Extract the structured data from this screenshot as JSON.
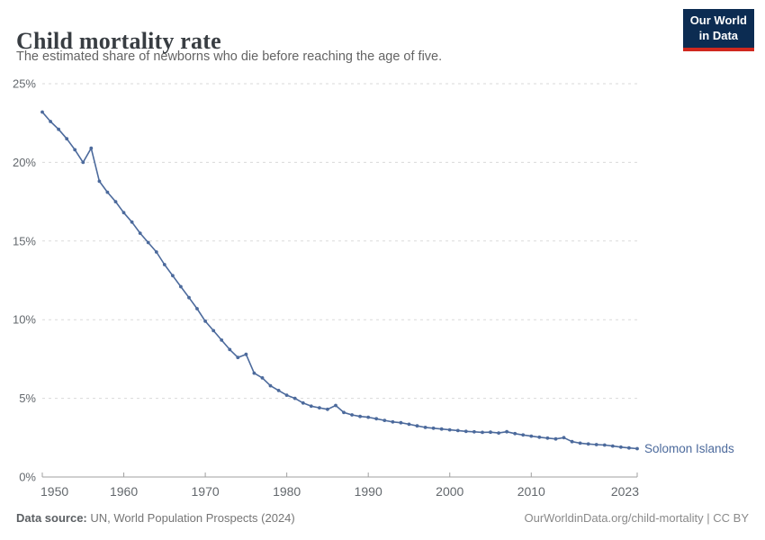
{
  "header": {
    "title": "Child mortality rate",
    "subtitle": "The estimated share of newborns who die before reaching the age of five.",
    "logo": {
      "line1": "Our World",
      "line2": "in Data",
      "bg_color": "#0c2c52",
      "accent_color": "#d0281e"
    }
  },
  "chart_data": {
    "type": "line",
    "title": "Child mortality rate",
    "xlabel": "",
    "ylabel": "",
    "ylim": [
      0,
      25
    ],
    "x_range": [
      1950,
      2023
    ],
    "grid": "dashed-horizontal",
    "legend_position": "end-of-line-label",
    "yticks": [
      {
        "value": 0,
        "label": "0%"
      },
      {
        "value": 5,
        "label": "5%"
      },
      {
        "value": 10,
        "label": "10%"
      },
      {
        "value": 15,
        "label": "15%"
      },
      {
        "value": 20,
        "label": "20%"
      },
      {
        "value": 25,
        "label": "25%"
      }
    ],
    "xticks": [
      {
        "value": 1950,
        "label": "1950"
      },
      {
        "value": 1960,
        "label": "1960"
      },
      {
        "value": 1970,
        "label": "1970"
      },
      {
        "value": 1980,
        "label": "1980"
      },
      {
        "value": 1990,
        "label": "1990"
      },
      {
        "value": 2000,
        "label": "2000"
      },
      {
        "value": 2010,
        "label": "2010"
      },
      {
        "value": 2023,
        "label": "2023"
      }
    ],
    "series": [
      {
        "name": "Solomon Islands",
        "color": "#4c6a9c",
        "years": [
          1950,
          1951,
          1952,
          1953,
          1954,
          1955,
          1956,
          1957,
          1958,
          1959,
          1960,
          1961,
          1962,
          1963,
          1964,
          1965,
          1966,
          1967,
          1968,
          1969,
          1970,
          1971,
          1972,
          1973,
          1974,
          1975,
          1976,
          1977,
          1978,
          1979,
          1980,
          1981,
          1982,
          1983,
          1984,
          1985,
          1986,
          1987,
          1988,
          1989,
          1990,
          1991,
          1992,
          1993,
          1994,
          1995,
          1996,
          1997,
          1998,
          1999,
          2000,
          2001,
          2002,
          2003,
          2004,
          2005,
          2006,
          2007,
          2008,
          2009,
          2010,
          2011,
          2012,
          2013,
          2014,
          2015,
          2016,
          2017,
          2018,
          2019,
          2020,
          2021,
          2022,
          2023
        ],
        "values": [
          23.2,
          22.6,
          22.1,
          21.5,
          20.8,
          20.0,
          20.9,
          18.8,
          18.1,
          17.5,
          16.8,
          16.2,
          15.5,
          14.9,
          14.3,
          13.5,
          12.8,
          12.1,
          11.4,
          10.7,
          9.9,
          9.3,
          8.7,
          8.1,
          7.6,
          7.8,
          6.6,
          6.3,
          5.8,
          5.5,
          5.2,
          5.0,
          4.7,
          4.5,
          4.4,
          4.3,
          4.55,
          4.1,
          3.95,
          3.85,
          3.8,
          3.7,
          3.6,
          3.5,
          3.45,
          3.35,
          3.25,
          3.15,
          3.1,
          3.05,
          3.0,
          2.95,
          2.9,
          2.87,
          2.84,
          2.85,
          2.8,
          2.88,
          2.76,
          2.67,
          2.6,
          2.53,
          2.47,
          2.42,
          2.5,
          2.25,
          2.15,
          2.1,
          2.06,
          2.03,
          1.97,
          1.9,
          1.85,
          1.8
        ]
      }
    ],
    "colors": {
      "gridline": "#dadada",
      "axis": "#a0a0a0",
      "tick_label": "#63686d"
    }
  },
  "footer": {
    "source_label": "Data source:",
    "source_text": " UN, World Population Prospects (2024)",
    "link_text": "OurWorldinData.org/child-mortality | CC BY"
  }
}
